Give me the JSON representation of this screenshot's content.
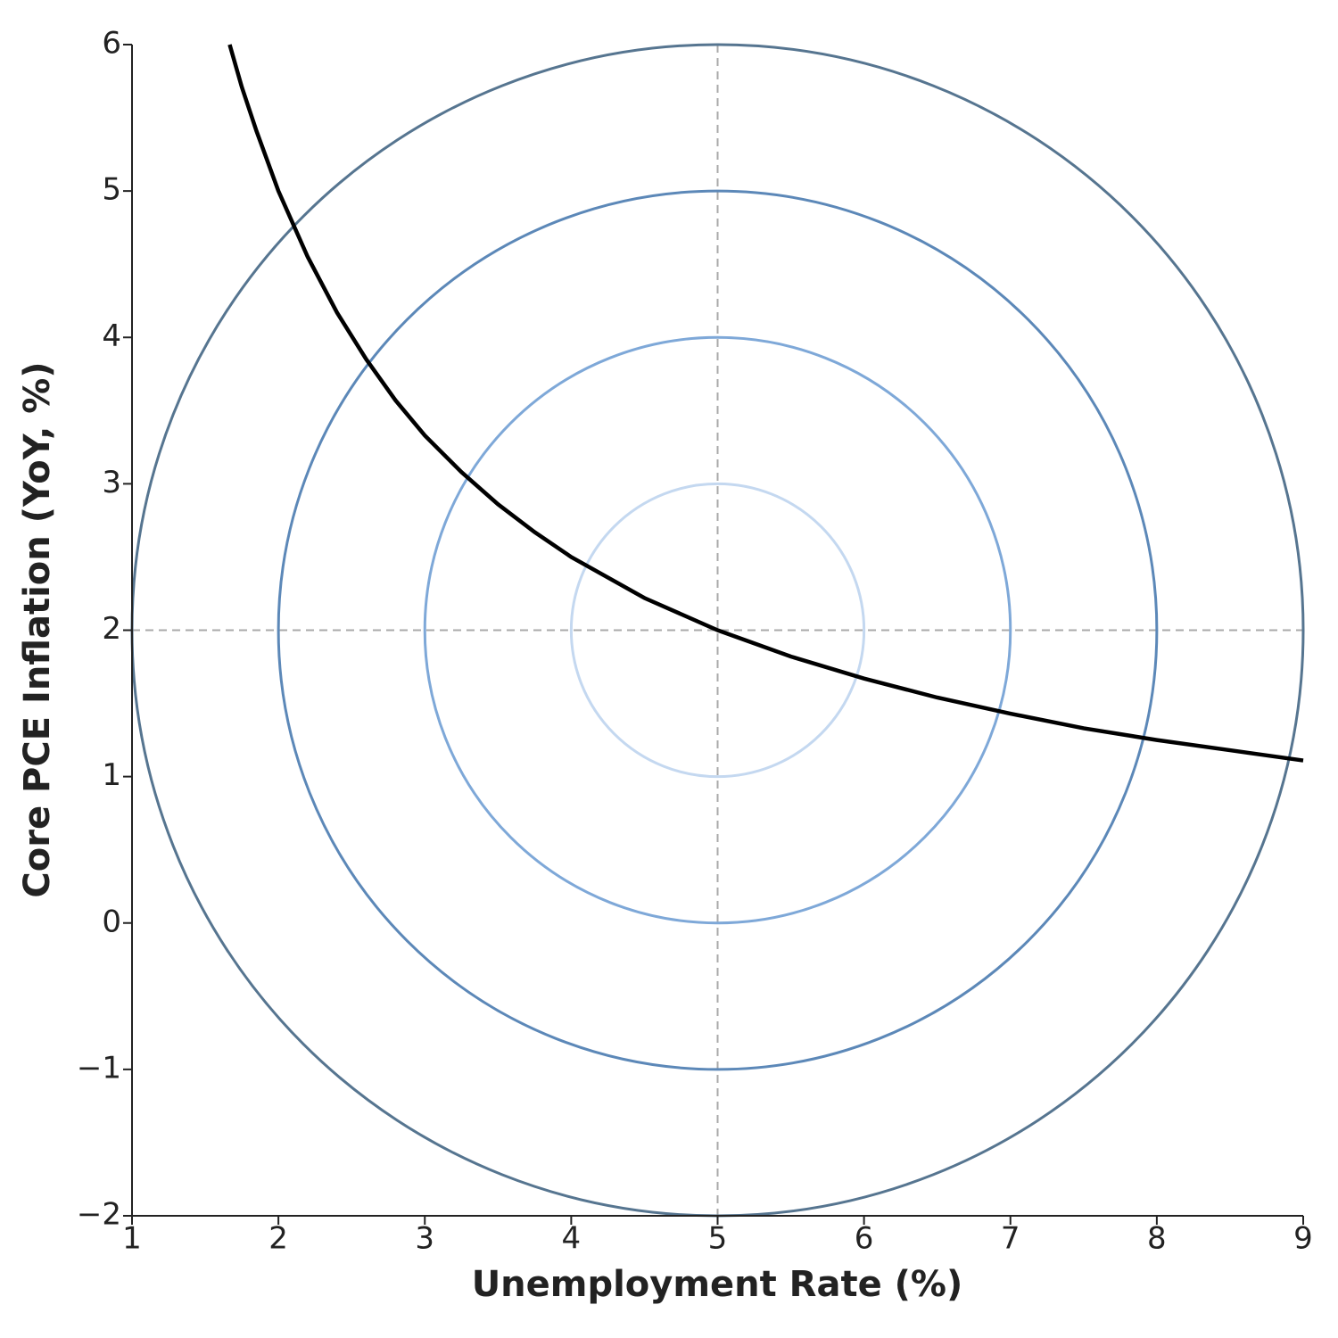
{
  "chart_data": {
    "type": "line",
    "xlabel": "Unemployment Rate (%)",
    "ylabel": "Core PCE Inflation (YoY, %)",
    "xlim": [
      1,
      9
    ],
    "xticks": [
      1,
      2,
      3,
      4,
      5,
      6,
      7,
      8,
      9
    ],
    "ylim": [
      -2,
      6
    ],
    "yticks": [
      {
        "value": -2,
        "label": "−2"
      },
      {
        "value": -1,
        "label": "−1"
      },
      0,
      1,
      2,
      3,
      4,
      5,
      6
    ],
    "series": [
      {
        "color": "#000000",
        "x": [
          1.667,
          1.75,
          1.85,
          2,
          2.2,
          2.4,
          2.6,
          2.8,
          3,
          3.25,
          3.5,
          3.75,
          4,
          4.5,
          5,
          5.5,
          6,
          6.5,
          7,
          7.5,
          8,
          8.5,
          9
        ],
        "values": [
          6.0,
          5.71,
          5.41,
          5.0,
          4.55,
          4.17,
          3.85,
          3.57,
          3.33,
          3.08,
          2.86,
          2.67,
          2.5,
          2.22,
          2.0,
          1.82,
          1.67,
          1.54,
          1.43,
          1.33,
          1.25,
          1.18,
          1.11
        ]
      }
    ],
    "circles": [
      {
        "cx": 5,
        "cy": 2,
        "r": 1,
        "color": "#c4d8f0"
      },
      {
        "cx": 5,
        "cy": 2,
        "r": 2,
        "color": "#7ea8d8"
      },
      {
        "cx": 5,
        "cy": 2,
        "r": 3,
        "color": "#5c88b8"
      },
      {
        "cx": 5,
        "cy": 2,
        "r": 4,
        "color": "#567590"
      }
    ],
    "hlines": [
      2
    ],
    "vlines": [
      5
    ],
    "refline_color": "#aaaaaa"
  }
}
